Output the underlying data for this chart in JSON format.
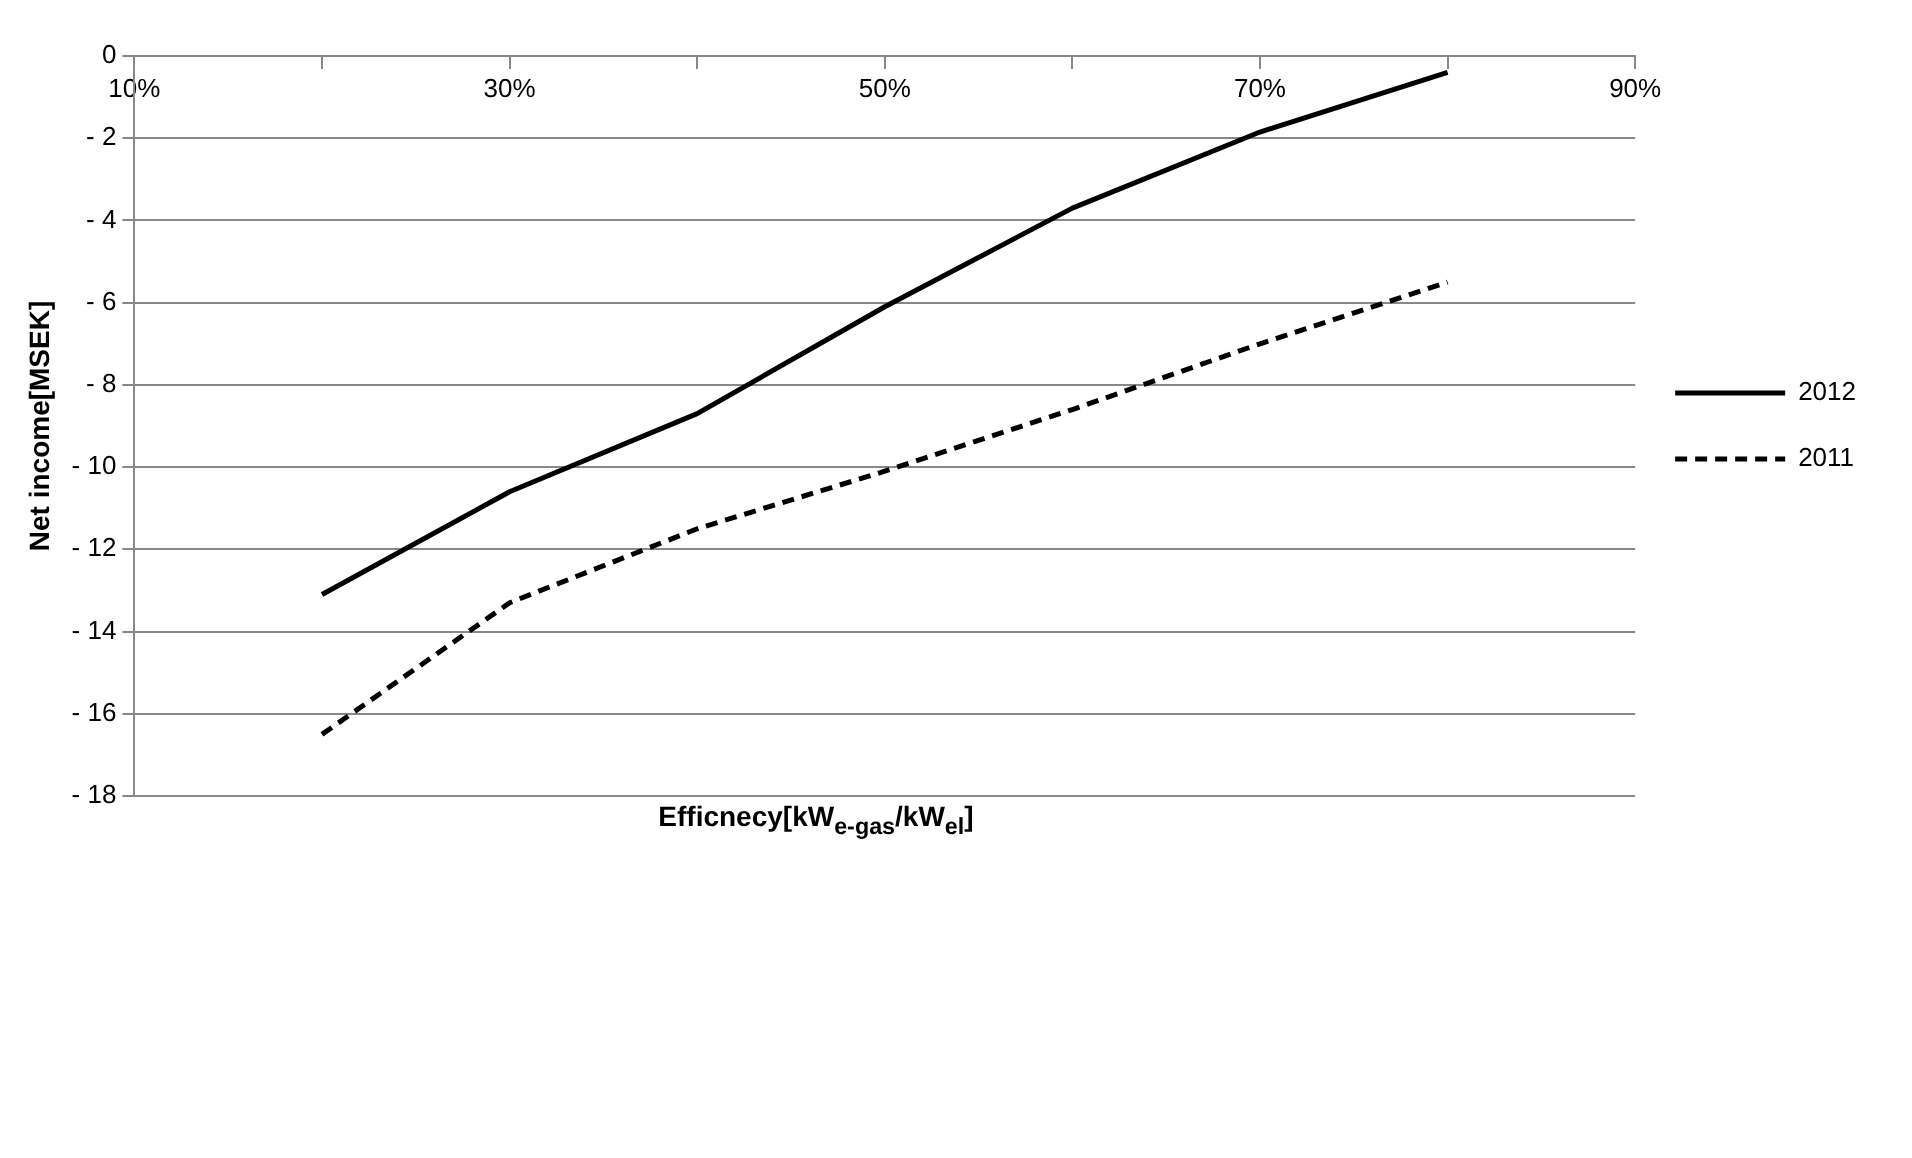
{
  "chart_data": {
    "type": "line",
    "xlabel": "Efficnecy[kW$_{e-gas}$/kW$_{el}$]",
    "ylabel": "Net income[MSEK]",
    "x": [
      20,
      30,
      40,
      50,
      60,
      70,
      80
    ],
    "series": [
      {
        "name": "2012",
        "color": "#000000",
        "line_style": "solid",
        "values": [
          -13.1,
          -10.6,
          -8.7,
          -6.1,
          -3.7,
          -1.85,
          -0.4
        ]
      },
      {
        "name": "2011",
        "color": "#000000",
        "line_style": "dashed",
        "values": [
          -16.5,
          -13.3,
          -11.5,
          -10.1,
          -8.6,
          -7.0,
          -5.5
        ]
      }
    ],
    "xlim": [
      10,
      90
    ],
    "xticks": [
      {
        "value": 10,
        "label": "10%"
      },
      {
        "value": 20,
        "label": null
      },
      {
        "value": 30,
        "label": "30%"
      },
      {
        "value": 40,
        "label": null
      },
      {
        "value": 50,
        "label": "50%"
      },
      {
        "value": 60,
        "label": null
      },
      {
        "value": 70,
        "label": "70%"
      },
      {
        "value": 80,
        "label": null
      },
      {
        "value": 90,
        "label": "90%"
      }
    ],
    "ylim": [
      -18,
      0
    ],
    "yticks": [
      {
        "value": -18,
        "label": "- 18"
      },
      {
        "value": -16,
        "label": "- 16"
      },
      {
        "value": -14,
        "label": "- 14"
      },
      {
        "value": -12,
        "label": "- 12"
      },
      {
        "value": -10,
        "label": "- 10"
      },
      {
        "value": -8,
        "label": "- 8"
      },
      {
        "value": -6,
        "label": "- 6"
      },
      {
        "value": -4,
        "label": "- 4"
      },
      {
        "value": -2,
        "label": "- 2"
      },
      0
    ],
    "grid": "y",
    "legend": "right",
    "marker": "none"
  }
}
